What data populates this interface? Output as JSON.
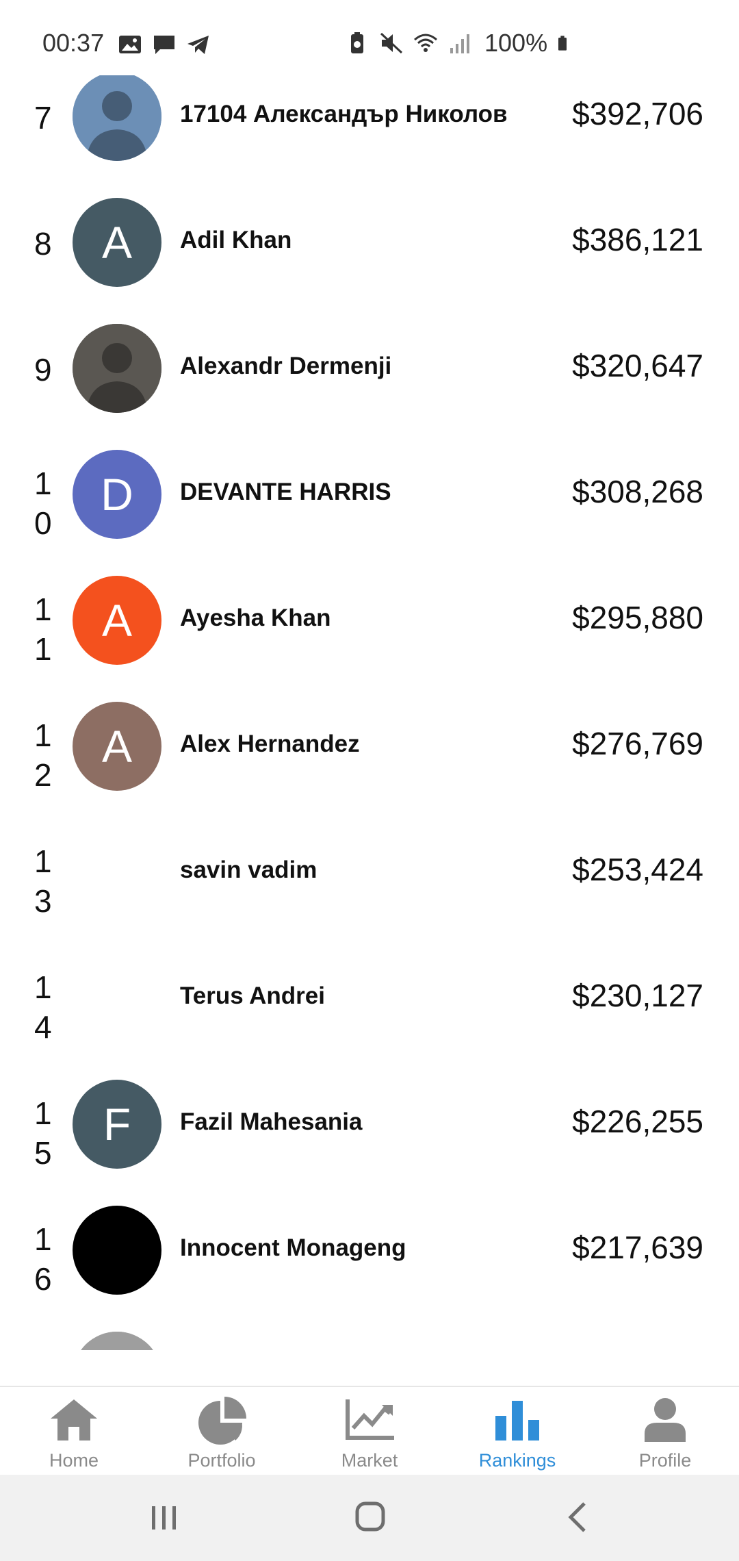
{
  "status_bar": {
    "time": "00:37",
    "battery": "100%",
    "icons": [
      "image-icon",
      "message-icon",
      "telegram-icon",
      "battery-saver-icon",
      "mute-icon",
      "wifi-icon",
      "signal-icon",
      "battery-icon"
    ]
  },
  "rankings": [
    {
      "rank": "7",
      "name": "17104 Александър Николов",
      "value": "$392,706",
      "avatar": {
        "type": "photo",
        "color": "#6c8fb6"
      }
    },
    {
      "rank": "8",
      "name": "Adil Khan",
      "value": "$386,121",
      "avatar": {
        "type": "letter",
        "letter": "A",
        "color": "#455a64"
      }
    },
    {
      "rank": "9",
      "name": "Alexandr Dermenji",
      "value": "$320,647",
      "avatar": {
        "type": "photo",
        "color": "#5a5752"
      }
    },
    {
      "rank": "10",
      "name": "DEVANTE HARRIS",
      "value": "$308,268",
      "avatar": {
        "type": "letter",
        "letter": "D",
        "color": "#5c6bc0"
      }
    },
    {
      "rank": "11",
      "name": "Ayesha Khan",
      "value": "$295,880",
      "avatar": {
        "type": "letter",
        "letter": "A",
        "color": "#f4511e"
      }
    },
    {
      "rank": "12",
      "name": "Alex Hernandez",
      "value": "$276,769",
      "avatar": {
        "type": "letter",
        "letter": "A",
        "color": "#8d6e63"
      }
    },
    {
      "rank": "13",
      "name": "savin vadim",
      "value": "$253,424",
      "avatar": {
        "type": "none",
        "color": "#ffffff"
      }
    },
    {
      "rank": "14",
      "name": "Terus Andrei",
      "value": "$230,127",
      "avatar": {
        "type": "none",
        "color": "#ffffff"
      }
    },
    {
      "rank": "15",
      "name": "Fazil Mahesania",
      "value": "$226,255",
      "avatar": {
        "type": "letter",
        "letter": "F",
        "color": "#455a64"
      }
    },
    {
      "rank": "16",
      "name": "Innocent Monageng",
      "value": "$217,639",
      "avatar": {
        "type": "solid",
        "color": "#000000"
      }
    },
    {
      "rank": "",
      "name": "",
      "value": "",
      "avatar": {
        "type": "photo",
        "color": "#9e9e9e"
      }
    }
  ],
  "bottom_nav": [
    {
      "label": "Home",
      "icon": "home-icon",
      "active": false
    },
    {
      "label": "Portfolio",
      "icon": "pie-chart-icon",
      "active": false
    },
    {
      "label": "Market",
      "icon": "trend-chart-icon",
      "active": false
    },
    {
      "label": "Rankings",
      "icon": "bar-chart-icon",
      "active": true
    },
    {
      "label": "Profile",
      "icon": "person-icon",
      "active": false
    }
  ],
  "colors": {
    "active": "#2f8ed8",
    "inactive": "#8a8a8a"
  }
}
